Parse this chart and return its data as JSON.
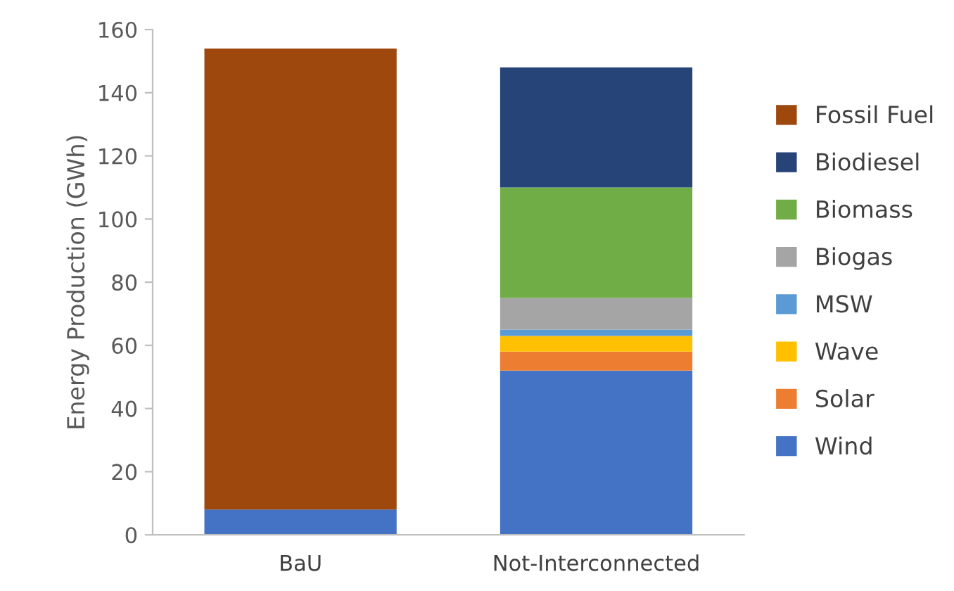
{
  "chart_data": {
    "type": "bar",
    "stacked": true,
    "ylabel": "Energy Production (GWh)",
    "categories": [
      "BaU",
      "Not-Interconnected"
    ],
    "series": [
      {
        "name": "Wind",
        "color": "#4472c4",
        "values": [
          8,
          52
        ]
      },
      {
        "name": "Solar",
        "color": "#ed7d31",
        "values": [
          0,
          6
        ]
      },
      {
        "name": "Wave",
        "color": "#ffc000",
        "values": [
          0,
          5
        ]
      },
      {
        "name": "MSW",
        "color": "#5b9bd5",
        "values": [
          0,
          2
        ]
      },
      {
        "name": "Biogas",
        "color": "#a5a5a5",
        "values": [
          0,
          10
        ]
      },
      {
        "name": "Biomass",
        "color": "#70ad47",
        "values": [
          0,
          35
        ]
      },
      {
        "name": "Biodiesel",
        "color": "#264478",
        "values": [
          0,
          38
        ]
      },
      {
        "name": "Fossil Fuel",
        "color": "#9e480e",
        "values": [
          146,
          0
        ]
      }
    ],
    "ylim": [
      0,
      160
    ],
    "yticks": [
      0,
      20,
      40,
      60,
      80,
      100,
      120,
      140,
      160
    ],
    "grid": false,
    "legend": "right"
  }
}
